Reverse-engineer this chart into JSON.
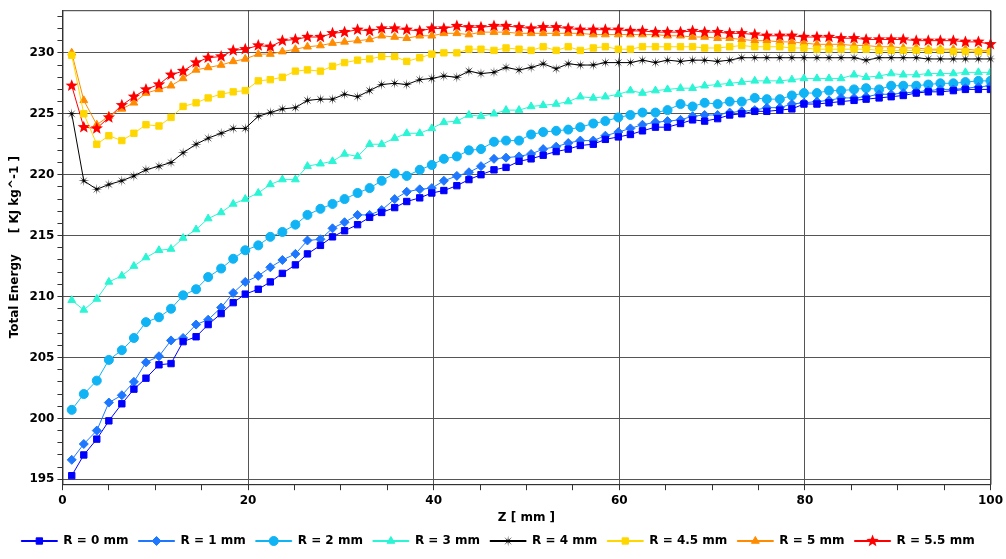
{
  "chart_data": {
    "type": "line",
    "xlabel": "Z [ mm ]",
    "ylabel": "Total Energy     [ KJ kg^-1 ]",
    "x": [
      1.0,
      2.3,
      3.7,
      5.0,
      6.4,
      7.7,
      9.0,
      10.4,
      11.7,
      13.0,
      14.4,
      15.7,
      17.1,
      18.4,
      19.7,
      21.1,
      22.4,
      23.7,
      25.1,
      26.4,
      27.8,
      29.1,
      30.4,
      31.8,
      33.1,
      34.4,
      35.8,
      37.1,
      38.5,
      39.8,
      41.1,
      42.5,
      43.8,
      45.1,
      46.5,
      47.8,
      49.2,
      50.5,
      51.8,
      53.2,
      54.5,
      55.8,
      57.2,
      58.5,
      59.9,
      61.2,
      62.5,
      63.9,
      65.2,
      66.6,
      67.9,
      69.2,
      70.6,
      71.9,
      73.2,
      74.6,
      75.9,
      77.3,
      78.6,
      79.9,
      81.3,
      82.6,
      83.9,
      85.3,
      86.6,
      88.0,
      89.3,
      90.6,
      92.0,
      93.3,
      94.6,
      96.0,
      97.3,
      98.7,
      100.0
    ],
    "xlim": [
      0,
      100
    ],
    "xticks": [
      0,
      {
        "value": 5,
        "label": null
      },
      {
        "value": 10,
        "label": null
      },
      {
        "value": 15,
        "label": null
      },
      20,
      {
        "value": 25,
        "label": null
      },
      {
        "value": 30,
        "label": null
      },
      {
        "value": 35,
        "label": null
      },
      40,
      {
        "value": 45,
        "label": null
      },
      {
        "value": 50,
        "label": null
      },
      {
        "value": 55,
        "label": null
      },
      60,
      {
        "value": 65,
        "label": null
      },
      {
        "value": 70,
        "label": null
      },
      {
        "value": 75,
        "label": null
      },
      80,
      {
        "value": 85,
        "label": null
      },
      {
        "value": 90,
        "label": null
      },
      {
        "value": 95,
        "label": null
      },
      100
    ],
    "ylim": [
      194.6,
      233.5
    ],
    "yticks": [
      195,
      {
        "value": 196,
        "label": null
      },
      {
        "value": 197,
        "label": null
      },
      {
        "value": 198,
        "label": null
      },
      {
        "value": 199,
        "label": null
      },
      200,
      {
        "value": 201,
        "label": null
      },
      {
        "value": 202,
        "label": null
      },
      {
        "value": 203,
        "label": null
      },
      {
        "value": 204,
        "label": null
      },
      205,
      {
        "value": 206,
        "label": null
      },
      {
        "value": 207,
        "label": null
      },
      {
        "value": 208,
        "label": null
      },
      {
        "value": 209,
        "label": null
      },
      210,
      {
        "value": 211,
        "label": null
      },
      {
        "value": 212,
        "label": null
      },
      {
        "value": 213,
        "label": null
      },
      {
        "value": 214,
        "label": null
      },
      215,
      {
        "value": 216,
        "label": null
      },
      {
        "value": 217,
        "label": null
      },
      {
        "value": 218,
        "label": null
      },
      {
        "value": 219,
        "label": null
      },
      220,
      {
        "value": 221,
        "label": null
      },
      {
        "value": 222,
        "label": null
      },
      {
        "value": 223,
        "label": null
      },
      {
        "value": 224,
        "label": null
      },
      225,
      {
        "value": 226,
        "label": null
      },
      {
        "value": 227,
        "label": null
      },
      {
        "value": 228,
        "label": null
      },
      {
        "value": 229,
        "label": null
      },
      230,
      {
        "value": 231,
        "label": null
      },
      {
        "value": 232,
        "label": null
      },
      {
        "value": 233,
        "label": null
      }
    ],
    "grid": true,
    "legend": "bottom",
    "line_style": "solid",
    "series": [
      {
        "name": "R = 0 mm",
        "color": "#0000ff",
        "marker": "square",
        "values": [
          195.3,
          197.0,
          198.3,
          199.8,
          201.2,
          202.4,
          203.3,
          204.4,
          204.5,
          206.3,
          206.7,
          207.7,
          208.6,
          209.5,
          210.2,
          210.6,
          211.2,
          211.9,
          212.6,
          213.5,
          214.2,
          214.9,
          215.4,
          215.9,
          216.5,
          216.9,
          217.3,
          217.8,
          218.1,
          218.5,
          218.7,
          219.1,
          219.6,
          220.0,
          220.4,
          220.6,
          221.1,
          221.3,
          221.6,
          221.9,
          222.1,
          222.4,
          222.5,
          222.9,
          223.1,
          223.3,
          223.6,
          223.9,
          223.9,
          224.2,
          224.5,
          224.4,
          224.6,
          224.9,
          225.0,
          225.2,
          225.2,
          225.3,
          225.4,
          225.8,
          225.8,
          225.9,
          226.0,
          226.1,
          226.2,
          226.3,
          226.4,
          226.5,
          226.7,
          226.8,
          226.8,
          226.9,
          227.0,
          227.0,
          227.0
        ]
      },
      {
        "name": "R = 1 mm",
        "color": "#1e78ff",
        "marker": "diamond",
        "values": [
          196.6,
          197.9,
          199.0,
          201.3,
          201.9,
          203.0,
          204.6,
          205.1,
          206.4,
          206.6,
          207.7,
          208.1,
          209.1,
          210.3,
          211.2,
          211.7,
          212.4,
          213.0,
          213.5,
          214.6,
          214.7,
          215.6,
          216.1,
          216.7,
          216.7,
          217.1,
          218.0,
          218.6,
          218.8,
          218.9,
          219.5,
          219.9,
          220.2,
          220.7,
          221.3,
          221.4,
          221.5,
          221.7,
          222.1,
          222.3,
          222.6,
          222.8,
          222.8,
          223.2,
          223.5,
          223.8,
          224.1,
          224.3,
          224.4,
          224.5,
          224.8,
          224.9,
          224.9,
          225.1,
          225.2,
          225.3,
          225.5,
          225.5,
          225.8,
          225.9,
          226.0,
          226.1,
          226.3,
          226.3,
          226.4,
          226.6,
          226.6,
          226.7,
          226.8,
          226.9,
          227.0,
          227.0,
          227.1,
          227.2,
          227.3
        ]
      },
      {
        "name": "R = 2 mm",
        "color": "#10b4f5",
        "marker": "circle",
        "values": [
          200.7,
          202.0,
          203.1,
          204.8,
          205.6,
          206.6,
          207.9,
          208.3,
          209.0,
          210.1,
          210.6,
          211.6,
          212.3,
          213.1,
          213.8,
          214.2,
          214.9,
          215.3,
          215.9,
          216.7,
          217.2,
          217.6,
          218.0,
          218.5,
          218.9,
          219.5,
          220.1,
          219.9,
          220.4,
          220.8,
          221.3,
          221.5,
          222.0,
          222.1,
          222.7,
          222.8,
          222.8,
          223.3,
          223.5,
          223.6,
          223.7,
          223.9,
          224.2,
          224.4,
          224.7,
          224.9,
          225.1,
          225.1,
          225.3,
          225.8,
          225.6,
          225.9,
          225.8,
          226.0,
          226.0,
          226.3,
          226.2,
          226.2,
          226.5,
          226.7,
          226.7,
          226.9,
          226.9,
          227.0,
          227.1,
          227.0,
          227.3,
          227.3,
          227.3,
          227.4,
          227.5,
          227.5,
          227.6,
          227.7,
          227.7
        ]
      },
      {
        "name": "R = 3 mm",
        "color": "#2af5d5",
        "marker": "triangle",
        "values": [
          209.7,
          208.9,
          209.8,
          211.2,
          211.7,
          212.5,
          213.2,
          213.8,
          213.9,
          214.8,
          215.5,
          216.4,
          216.9,
          217.6,
          218.0,
          218.5,
          219.2,
          219.6,
          219.6,
          220.7,
          220.9,
          221.1,
          221.7,
          221.5,
          222.5,
          222.5,
          223.0,
          223.4,
          223.4,
          223.8,
          224.3,
          224.4,
          224.9,
          224.8,
          225.0,
          225.3,
          225.3,
          225.6,
          225.7,
          225.8,
          226.0,
          226.4,
          226.3,
          226.4,
          226.6,
          226.9,
          226.7,
          226.9,
          227.0,
          227.1,
          227.1,
          227.3,
          227.4,
          227.5,
          227.6,
          227.7,
          227.7,
          227.7,
          227.8,
          227.9,
          227.9,
          227.9,
          227.9,
          228.2,
          228.0,
          228.1,
          228.3,
          228.2,
          228.2,
          228.3,
          228.3,
          228.3,
          228.4,
          228.4,
          228.4
        ]
      },
      {
        "name": "R = 4 mm",
        "color": "#000000",
        "marker": "cross",
        "values": [
          225.0,
          219.5,
          218.8,
          219.2,
          219.5,
          219.9,
          220.4,
          220.7,
          221.0,
          221.8,
          222.5,
          223.0,
          223.4,
          223.8,
          223.8,
          224.8,
          225.1,
          225.4,
          225.5,
          226.1,
          226.2,
          226.2,
          226.6,
          226.4,
          226.9,
          227.4,
          227.5,
          227.4,
          227.8,
          227.9,
          228.1,
          228.0,
          228.5,
          228.3,
          228.4,
          228.8,
          228.6,
          228.8,
          229.1,
          228.7,
          229.1,
          229.0,
          229.0,
          229.2,
          229.2,
          229.2,
          229.4,
          229.2,
          229.4,
          229.3,
          229.4,
          229.4,
          229.3,
          229.4,
          229.6,
          229.6,
          229.6,
          229.6,
          229.6,
          229.6,
          229.6,
          229.6,
          229.6,
          229.6,
          229.4,
          229.6,
          229.6,
          229.6,
          229.6,
          229.5,
          229.5,
          229.5,
          229.5,
          229.5,
          229.5
        ]
      },
      {
        "name": "R = 4.5 mm",
        "color": "#ffd700",
        "marker": "square",
        "values": [
          229.8,
          225.0,
          222.5,
          223.2,
          222.8,
          223.4,
          224.1,
          224.0,
          224.7,
          225.6,
          225.9,
          226.3,
          226.6,
          226.8,
          226.9,
          227.7,
          227.8,
          228.0,
          228.5,
          228.6,
          228.5,
          228.9,
          229.2,
          229.4,
          229.5,
          229.7,
          229.7,
          229.3,
          229.6,
          229.9,
          230.0,
          230.0,
          230.3,
          230.3,
          230.2,
          230.4,
          230.3,
          230.2,
          230.5,
          230.2,
          230.5,
          230.2,
          230.4,
          230.5,
          230.3,
          230.3,
          230.5,
          230.5,
          230.5,
          230.5,
          230.5,
          230.4,
          230.4,
          230.5,
          230.6,
          230.5,
          230.5,
          230.5,
          230.4,
          230.4,
          230.3,
          230.3,
          230.3,
          230.3,
          230.3,
          230.2,
          230.2,
          230.2,
          230.2,
          230.2,
          230.2,
          230.1,
          230.1,
          230.1,
          230.1
        ]
      },
      {
        "name": "R = 5 mm",
        "color": "#ff8c00",
        "marker": "triangle",
        "values": [
          230.0,
          226.1,
          224.1,
          224.8,
          225.4,
          225.9,
          226.7,
          227.0,
          227.3,
          227.9,
          228.6,
          228.8,
          229.0,
          229.3,
          229.5,
          229.9,
          229.9,
          230.1,
          230.3,
          230.5,
          230.6,
          230.8,
          230.9,
          231.0,
          231.1,
          231.4,
          231.3,
          231.2,
          231.4,
          231.4,
          231.6,
          231.6,
          231.5,
          231.7,
          231.7,
          231.7,
          231.6,
          231.6,
          231.6,
          231.6,
          231.6,
          231.6,
          231.5,
          231.5,
          231.5,
          231.5,
          231.5,
          231.5,
          231.4,
          231.4,
          231.3,
          231.3,
          231.2,
          231.2,
          231.1,
          231.0,
          231.0,
          230.9,
          230.9,
          230.8,
          230.7,
          230.7,
          230.7,
          230.6,
          230.6,
          230.5,
          230.5,
          230.4,
          230.4,
          230.3,
          230.3,
          230.3,
          230.3,
          230.2,
          230.2
        ]
      },
      {
        "name": "R = 5.5 mm",
        "color": "#ff0000",
        "marker": "star",
        "values": [
          227.3,
          223.9,
          223.8,
          224.7,
          225.7,
          226.4,
          227.0,
          227.4,
          228.2,
          228.5,
          229.2,
          229.6,
          229.7,
          230.2,
          230.3,
          230.6,
          230.5,
          231.0,
          231.1,
          231.3,
          231.3,
          231.6,
          231.7,
          231.9,
          231.8,
          232.0,
          232.0,
          231.9,
          231.8,
          232.0,
          232.0,
          232.2,
          232.1,
          232.1,
          232.2,
          232.2,
          232.1,
          232.0,
          232.1,
          232.1,
          232.0,
          231.9,
          231.9,
          231.9,
          231.9,
          231.8,
          231.8,
          231.7,
          231.7,
          231.7,
          231.8,
          231.7,
          231.7,
          231.6,
          231.6,
          231.5,
          231.4,
          231.4,
          231.4,
          231.3,
          231.3,
          231.3,
          231.2,
          231.2,
          231.1,
          231.1,
          231.1,
          231.1,
          231.0,
          231.0,
          231.0,
          231.0,
          230.9,
          230.9,
          230.7
        ]
      }
    ]
  }
}
